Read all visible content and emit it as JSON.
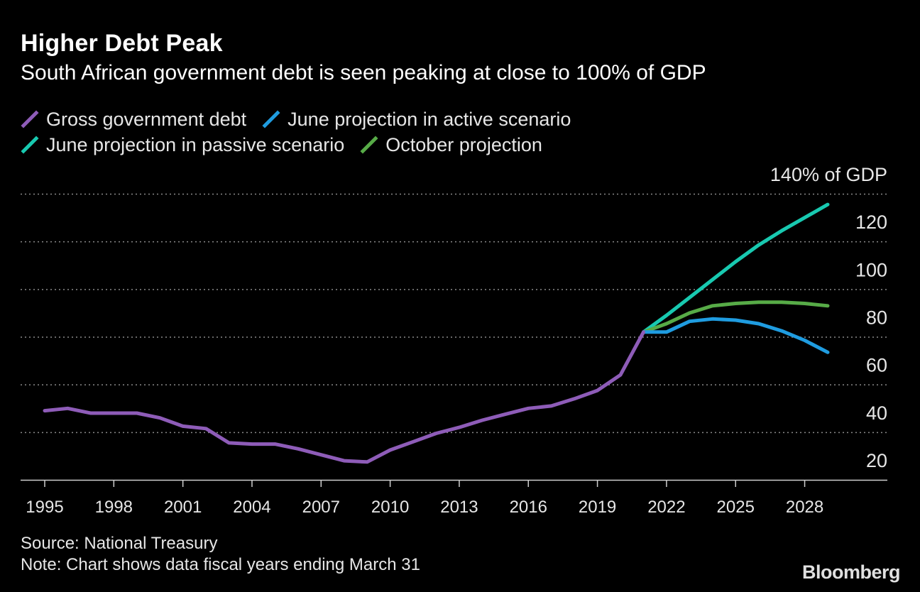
{
  "title": "Higher Debt Peak",
  "subtitle": "South African government debt is seen peaking at close to 100% of GDP",
  "source": "Source: National Treasury",
  "note": "Note: Chart shows data fiscal years ending March 31",
  "logo": "Bloomberg",
  "chart_data": {
    "type": "line",
    "title": "Higher Debt Peak",
    "xlabel": "",
    "ylabel": "",
    "xlim": [
      1995,
      2029
    ],
    "ylim": [
      20,
      140
    ],
    "grid": true,
    "legend_position": "top-left",
    "x_ticks": [
      1995,
      1998,
      2001,
      2004,
      2007,
      2010,
      2013,
      2016,
      2019,
      2022,
      2025,
      2028
    ],
    "y_ticks": [
      {
        "value": 20,
        "label": "20"
      },
      {
        "value": 40,
        "label": "40"
      },
      {
        "value": 60,
        "label": "60"
      },
      {
        "value": 80,
        "label": "80"
      },
      {
        "value": 100,
        "label": "100"
      },
      {
        "value": 120,
        "label": "120"
      },
      {
        "value": 140,
        "label": "140% of GDP"
      }
    ],
    "series": [
      {
        "name": "Gross government debt",
        "color": "#8e5cb8",
        "points": [
          [
            1995,
            49
          ],
          [
            1996,
            50
          ],
          [
            1997,
            48
          ],
          [
            1998,
            48
          ],
          [
            1999,
            48
          ],
          [
            2000,
            46
          ],
          [
            2001,
            42.5
          ],
          [
            2002,
            41.5
          ],
          [
            2003,
            35.5
          ],
          [
            2004,
            35
          ],
          [
            2005,
            35
          ],
          [
            2006,
            33
          ],
          [
            2007,
            30.5
          ],
          [
            2008,
            28
          ],
          [
            2009,
            27.5
          ],
          [
            2010,
            32.5
          ],
          [
            2011,
            36
          ],
          [
            2012,
            39.5
          ],
          [
            2013,
            42
          ],
          [
            2014,
            45
          ],
          [
            2015,
            47.5
          ],
          [
            2016,
            50
          ],
          [
            2017,
            51
          ],
          [
            2018,
            54
          ],
          [
            2019,
            57.5
          ],
          [
            2020,
            64
          ],
          [
            2021,
            82
          ]
        ]
      },
      {
        "name": "June projection in active scenario",
        "color": "#1f9ce0",
        "points": [
          [
            2021,
            82
          ],
          [
            2022,
            82
          ],
          [
            2023,
            86.5
          ],
          [
            2024,
            87.5
          ],
          [
            2025,
            87
          ],
          [
            2026,
            85.5
          ],
          [
            2027,
            82.5
          ],
          [
            2028,
            78.5
          ],
          [
            2029,
            73.5
          ]
        ]
      },
      {
        "name": "June projection in passive scenario",
        "color": "#18c9b0",
        "points": [
          [
            2021,
            82
          ],
          [
            2022,
            89
          ],
          [
            2023,
            96.5
          ],
          [
            2024,
            104
          ],
          [
            2025,
            111.5
          ],
          [
            2026,
            118.5
          ],
          [
            2027,
            124.5
          ],
          [
            2028,
            130
          ],
          [
            2029,
            135.5
          ]
        ]
      },
      {
        "name": "October projection",
        "color": "#57ab47",
        "points": [
          [
            2021,
            82
          ],
          [
            2022,
            85.5
          ],
          [
            2023,
            90
          ],
          [
            2024,
            93
          ],
          [
            2025,
            94
          ],
          [
            2026,
            94.5
          ],
          [
            2027,
            94.5
          ],
          [
            2028,
            94
          ],
          [
            2029,
            93
          ]
        ]
      }
    ]
  }
}
